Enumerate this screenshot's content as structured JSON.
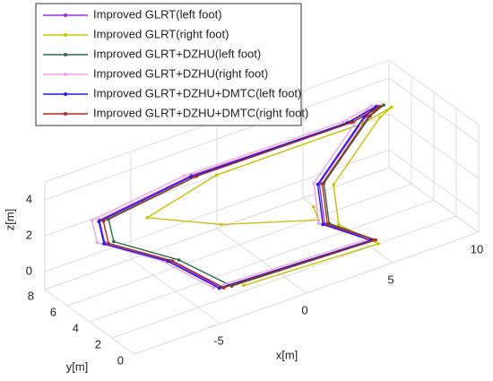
{
  "chart_data": {
    "type": "line3d",
    "xlabel": "x[m]",
    "ylabel": "y[m]",
    "zlabel": "z[m]",
    "xlim": [
      -10,
      10
    ],
    "ylim": [
      0,
      8
    ],
    "zlim": [
      -1,
      5
    ],
    "xticks": [
      -5,
      0,
      5,
      10
    ],
    "yticks": [
      0,
      2,
      4,
      6,
      8
    ],
    "zticks": [
      0,
      2,
      4
    ],
    "grid": true,
    "legend": "upper left",
    "series": [
      {
        "name": "Improved GLRT(left foot)",
        "color": "#9a2ee0",
        "x": [
          -4,
          4.5,
          3,
          4,
          8,
          9,
          7,
          -2,
          -8,
          -9,
          -6,
          -4
        ],
        "y": [
          1.5,
          1,
          3,
          5,
          7,
          7.5,
          7,
          7.2,
          6.2,
          4.2,
          3,
          1.5
        ],
        "z": [
          0,
          0,
          0.5,
          1.5,
          3,
          3,
          3,
          3,
          3,
          3,
          1.5,
          0
        ]
      },
      {
        "name": "Improved GLRT(right foot)",
        "color": "#c8c000",
        "x": [
          -3,
          4.5,
          3.5,
          4.5,
          8.5,
          9.5,
          7.5,
          -1,
          -6,
          -3,
          2,
          3
        ],
        "y": [
          1,
          0.5,
          2.5,
          4.5,
          6.5,
          7,
          6.5,
          6.5,
          5,
          3,
          2,
          4
        ],
        "z": [
          0,
          0,
          0.5,
          1.5,
          3,
          3,
          3,
          3,
          3,
          2.5,
          1.5,
          1
        ]
      },
      {
        "name": "Improved GLRT+DZHU(left foot)",
        "color": "#2e6b50",
        "x": [
          -3.5,
          4.6,
          3.2,
          4.2,
          8.2,
          9.3,
          7.2,
          -1.8,
          -7.6,
          -8.6,
          -5.6,
          -3.5
        ],
        "y": [
          1.3,
          0.9,
          2.9,
          4.9,
          6.9,
          7.4,
          6.9,
          7,
          6,
          4,
          2.8,
          1.3
        ],
        "z": [
          0,
          0,
          0.5,
          1.5,
          3,
          3,
          3,
          3,
          3,
          3,
          1.5,
          0
        ]
      },
      {
        "name": "Improved GLRT+DZHU(right foot)",
        "color": "#f2a0ee",
        "x": [
          -4.3,
          4.3,
          2.8,
          3.8,
          7.8,
          8.8,
          6.8,
          -2.3,
          -8.3,
          -9.3,
          -6.3,
          -4.3
        ],
        "y": [
          1.7,
          1.2,
          3.2,
          5.2,
          7.2,
          7.7,
          7.2,
          7.4,
          6.4,
          4.4,
          3.2,
          1.7
        ],
        "z": [
          0,
          0,
          0.5,
          1.5,
          3,
          3,
          3,
          3,
          3,
          3,
          1.5,
          0
        ]
      },
      {
        "name": "Improved GLRT+DZHU+DMTC(left foot)",
        "color": "#1c1ce0",
        "x": [
          -4.1,
          4.4,
          2.9,
          3.9,
          7.9,
          8.9,
          6.9,
          -2.1,
          -8.1,
          -9.1,
          -6.1,
          -4.1
        ],
        "y": [
          1.5,
          1,
          3,
          5,
          7,
          7.5,
          7,
          7.1,
          6.1,
          4.1,
          3,
          1.5
        ],
        "z": [
          0,
          0,
          0.5,
          1.5,
          3,
          3,
          3,
          3,
          3,
          3,
          1.5,
          0
        ]
      },
      {
        "name": "Improved GLRT+DZHU+DMTC(right foot)",
        "color": "#b02a1a",
        "x": [
          -3.9,
          4.6,
          3.1,
          4.1,
          8.1,
          9.1,
          7.1,
          -1.9,
          -7.9,
          -8.9,
          -5.9,
          -3.9
        ],
        "y": [
          1.4,
          0.9,
          2.9,
          4.9,
          6.9,
          7.4,
          6.9,
          7,
          6,
          4,
          2.9,
          1.4
        ],
        "z": [
          0,
          0,
          0.5,
          1.5,
          3,
          3,
          3,
          3,
          3,
          3,
          1.5,
          0
        ]
      }
    ]
  }
}
